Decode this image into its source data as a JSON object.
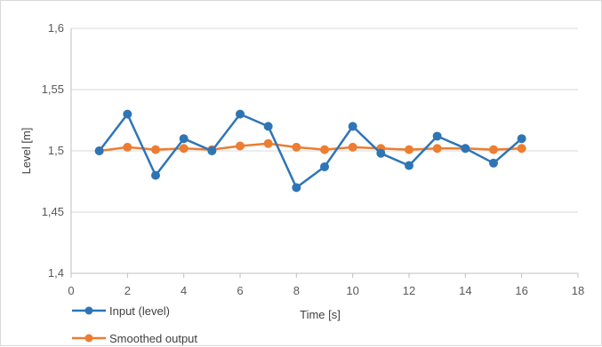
{
  "chart_data": {
    "type": "line",
    "title": "",
    "xlabel": "Time [s]",
    "ylabel": "Level [m]",
    "xlim": [
      0,
      18
    ],
    "ylim": [
      1.4,
      1.6
    ],
    "x_ticks": [
      0,
      2,
      4,
      6,
      8,
      10,
      12,
      14,
      16,
      18
    ],
    "x_tick_labels": [
      "0",
      "2",
      "4",
      "6",
      "8",
      "10",
      "12",
      "14",
      "16",
      "18"
    ],
    "y_ticks": [
      1.4,
      1.45,
      1.5,
      1.55,
      1.6
    ],
    "y_tick_labels": [
      "1,4",
      "1,45",
      "1,5",
      "1,55",
      "1,6"
    ],
    "grid": "horizontal",
    "legend_position": "bottom-left",
    "series": [
      {
        "name": "Input (level)",
        "color": "#2E75B6",
        "x": [
          1,
          2,
          3,
          4,
          5,
          6,
          7,
          8,
          9,
          10,
          11,
          12,
          13,
          14,
          15,
          16
        ],
        "y": [
          1.5,
          1.53,
          1.48,
          1.51,
          1.5,
          1.53,
          1.52,
          1.47,
          1.487,
          1.52,
          1.498,
          1.488,
          1.512,
          1.502,
          1.49,
          1.51
        ]
      },
      {
        "name": "Smoothed output",
        "color": "#ED7D31",
        "x": [
          1,
          2,
          3,
          4,
          5,
          6,
          7,
          8,
          9,
          10,
          11,
          12,
          13,
          14,
          15,
          16
        ],
        "y": [
          1.5,
          1.503,
          1.501,
          1.502,
          1.501,
          1.504,
          1.506,
          1.503,
          1.501,
          1.503,
          1.502,
          1.501,
          1.502,
          1.502,
          1.501,
          1.502
        ]
      }
    ]
  }
}
